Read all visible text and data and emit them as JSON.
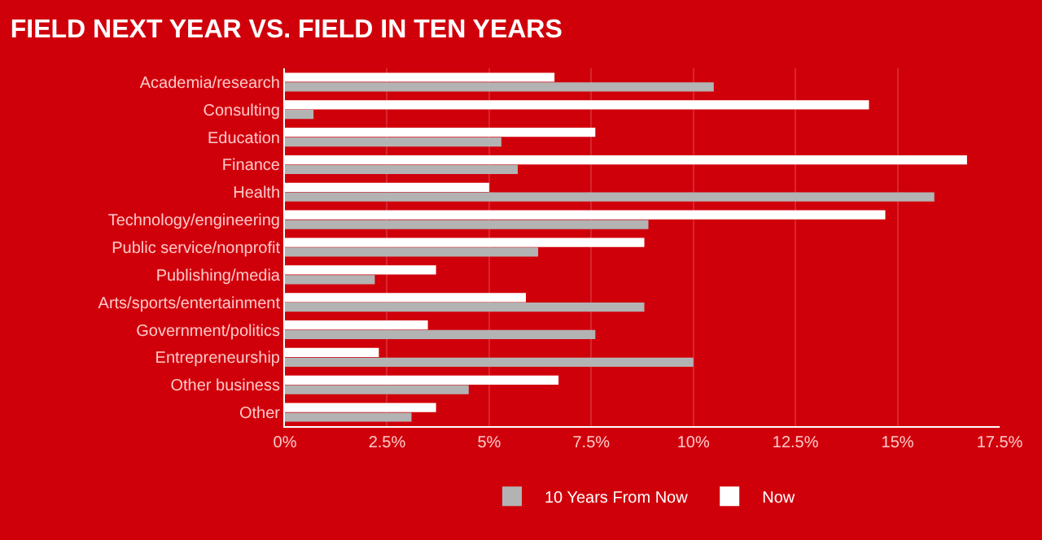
{
  "chart_data": {
    "type": "bar",
    "orientation": "horizontal",
    "title": "FIELD NEXT YEAR VS. FIELD IN TEN YEARS",
    "categories": [
      "Academia/research",
      "Consulting",
      "Education",
      "Finance",
      "Health",
      "Technology/engineering",
      "Public service/nonprofit",
      "Publishing/media",
      "Arts/sports/entertainment",
      "Government/politics",
      "Entrepreneurship",
      "Other business",
      "Other"
    ],
    "series": [
      {
        "name": "10 Years From Now",
        "color": "#b3b3b3",
        "values": [
          10.5,
          0.7,
          5.3,
          5.7,
          15.9,
          8.9,
          6.2,
          2.2,
          8.8,
          7.6,
          10.0,
          4.5,
          3.1
        ]
      },
      {
        "name": "Now",
        "color": "#ffffff",
        "values": [
          6.6,
          14.3,
          7.6,
          16.7,
          5.0,
          14.7,
          8.8,
          3.7,
          5.9,
          3.5,
          2.3,
          6.7,
          3.7
        ]
      }
    ],
    "xlim": [
      0,
      17.5
    ],
    "xticks": [
      {
        "value": 0,
        "label": "0%"
      },
      {
        "value": 2.5,
        "label": "2.5%"
      },
      {
        "value": 5,
        "label": "5%"
      },
      {
        "value": 7.5,
        "label": "7.5%"
      },
      {
        "value": 10,
        "label": "10%"
      },
      {
        "value": 12.5,
        "label": "12.5%"
      },
      {
        "value": 15,
        "label": "15%"
      },
      {
        "value": 17.5,
        "label": "17.5%"
      }
    ],
    "grid": "x",
    "legend": "bottom"
  }
}
